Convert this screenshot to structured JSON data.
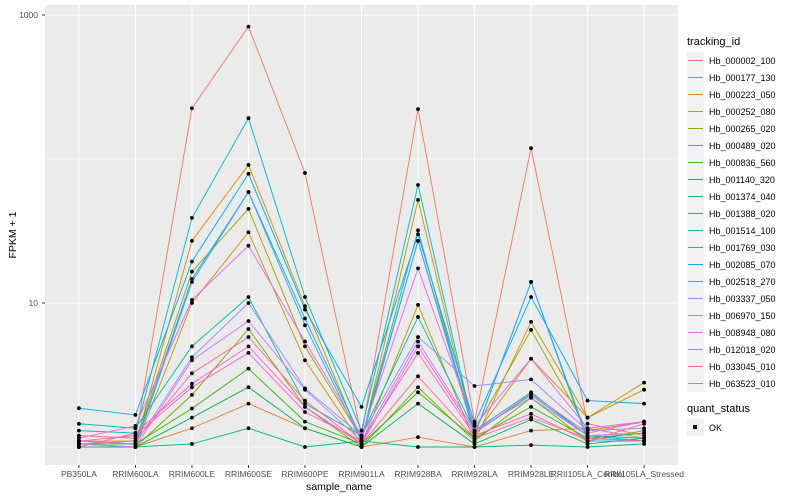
{
  "figure": {
    "x_axis": {
      "title": "sample_name"
    },
    "y_axis": {
      "title": "FPKM + 1",
      "tick_labels": [
        "1000",
        "10"
      ]
    },
    "legend": {
      "tracking_title": "tracking_id",
      "quant_title": "quant_status",
      "quant_items": [
        {
          "label": "OK"
        }
      ]
    }
  },
  "colors": {
    "panel_bg": "#EBEBEB",
    "gridline": "#FFFFFF",
    "tick_text": "#4D4D4D",
    "tick_mark": "#333333",
    "point": "#000000",
    "legend_key_bg": "#F2F2F2"
  },
  "chart_data": {
    "type": "line",
    "title": "",
    "xlabel": "sample_name",
    "ylabel": "FPKM + 1",
    "y_scale": "log10",
    "ylim": [
      0.75,
      1200
    ],
    "y_major_ticks": [
      10,
      1000
    ],
    "y_minor_gridlines": [
      1,
      100
    ],
    "grid": true,
    "legend_position": "right",
    "point_legend": {
      "title": "quant_status",
      "items": [
        "OK"
      ]
    },
    "categories": [
      "PB350LA",
      "RRIM600LA",
      "RRIM600LE",
      "RRIM600SE",
      "RRIM600PE",
      "RRIM901LA",
      "RRIM928BA",
      "RRIM928LA",
      "RRIM928LE",
      "RRII105LA_Control",
      "RRII105LA_Stressed"
    ],
    "series": [
      {
        "name": "Hb_000002_100",
        "color": "#F8766D",
        "values": [
          1.2,
          1.15,
          225,
          830,
          80,
          1.2,
          222,
          1.5,
          119,
          1.45,
          1.2
        ]
      },
      {
        "name": "Hb_000177_130",
        "color": "#EA8331",
        "values": [
          1.0,
          1.0,
          1.35,
          2.0,
          1.35,
          1.0,
          1.17,
          1.0,
          1.3,
          1.35,
          1.15
        ]
      },
      {
        "name": "Hb_000223_050",
        "color": "#D89000",
        "values": [
          1.1,
          1.05,
          27,
          91,
          9.5,
          1.1,
          52,
          1.2,
          4.1,
          1.6,
          2.8
        ]
      },
      {
        "name": "Hb_000252_080",
        "color": "#C49A00",
        "values": [
          1.05,
          1.0,
          10,
          31,
          4.0,
          1.05,
          9.7,
          1.1,
          7.4,
          1.6,
          2.5
        ]
      },
      {
        "name": "Hb_000265_020",
        "color": "#A3A500",
        "values": [
          1.1,
          1.1,
          16.5,
          45,
          5.0,
          1.15,
          27,
          1.3,
          6.5,
          1.3,
          1.5
        ]
      },
      {
        "name": "Hb_000489_020",
        "color": "#7CAE00",
        "values": [
          1.0,
          1.0,
          2.3,
          6.6,
          1.9,
          1.0,
          2.6,
          1.1,
          2.2,
          1.1,
          1.3
        ]
      },
      {
        "name": "Hb_000836_560",
        "color": "#39B600",
        "values": [
          1.05,
          1.05,
          1.85,
          3.5,
          1.5,
          1.05,
          2.4,
          1.15,
          1.9,
          1.15,
          1.25
        ]
      },
      {
        "name": "Hb_001140_320",
        "color": "#00BB4E",
        "values": [
          1.0,
          1.0,
          1.6,
          2.6,
          1.35,
          1.0,
          2.0,
          1.05,
          1.55,
          1.05,
          1.15
        ]
      },
      {
        "name": "Hb_001374_040",
        "color": "#00BF7D",
        "values": [
          1.0,
          1.0,
          1.05,
          1.35,
          1.0,
          1.1,
          1.0,
          1.0,
          1.03,
          1.0,
          1.05
        ]
      },
      {
        "name": "Hb_001388_020",
        "color": "#00C1A3",
        "values": [
          1.45,
          1.35,
          5.0,
          11,
          2.0,
          1.2,
          8.0,
          1.3,
          2.4,
          1.2,
          1.15
        ]
      },
      {
        "name": "Hb_001514_100",
        "color": "#00BFC4",
        "values": [
          1.3,
          1.25,
          39,
          192,
          11,
          1.3,
          66,
          1.25,
          2.3,
          1.2,
          1.1
        ]
      },
      {
        "name": "Hb_001769_030",
        "color": "#00BAE0",
        "values": [
          1.1,
          1.05,
          14.7,
          59,
          7.8,
          1.15,
          32,
          1.2,
          14,
          1.1,
          1.1
        ]
      },
      {
        "name": "Hb_002085_070",
        "color": "#00B0F6",
        "values": [
          1.86,
          1.67,
          19.4,
          79,
          9.0,
          1.9,
          30,
          1.45,
          11,
          2.1,
          2.0
        ]
      },
      {
        "name": "Hb_002518_270",
        "color": "#35A2FF",
        "values": [
          1.05,
          1.0,
          14.0,
          59,
          7.0,
          1.1,
          27,
          1.2,
          14,
          1.15,
          1.1
        ]
      },
      {
        "name": "Hb_003337_050",
        "color": "#9590FF",
        "values": [
          1.1,
          1.05,
          4.2,
          10,
          2.55,
          1.2,
          5.8,
          2.65,
          2.95,
          1.3,
          1.35
        ]
      },
      {
        "name": "Hb_006970_150",
        "color": "#C77CFF",
        "values": [
          1.05,
          1.0,
          4.0,
          7.5,
          2.5,
          1.1,
          5.4,
          1.3,
          2.2,
          1.2,
          1.25
        ]
      },
      {
        "name": "Hb_008948_080",
        "color": "#E76BF3",
        "values": [
          1.15,
          1.4,
          10.5,
          25,
          5.4,
          1.2,
          17.4,
          1.4,
          4.1,
          1.35,
          1.5
        ]
      },
      {
        "name": "Hb_012018_020",
        "color": "#FA62DB",
        "values": [
          1.0,
          1.25,
          2.75,
          5.0,
          1.9,
          1.05,
          5.0,
          1.25,
          2.35,
          1.25,
          1.5
        ]
      },
      {
        "name": "Hb_033045_010",
        "color": "#FF62BC",
        "values": [
          1.1,
          1.2,
          2.6,
          4.5,
          1.75,
          1.1,
          4.5,
          1.2,
          1.7,
          1.1,
          1.45
        ]
      },
      {
        "name": "Hb_063523_010",
        "color": "#FF6A98",
        "values": [
          1.05,
          1.1,
          3.25,
          5.8,
          2.1,
          1.05,
          3.1,
          1.15,
          1.6,
          1.15,
          1.1
        ]
      }
    ]
  }
}
